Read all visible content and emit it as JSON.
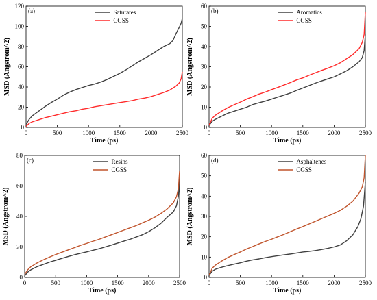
{
  "chart_data": [
    {
      "type": "line",
      "panel_label": "(a)",
      "xlabel": "Time (ps)",
      "ylabel": "MSD (Angstrom^2)",
      "xlim": [
        0,
        2500
      ],
      "ylim": [
        0,
        120
      ],
      "xticks": [
        0,
        500,
        1000,
        1500,
        2000,
        2500
      ],
      "yticks": [
        0,
        20,
        40,
        60,
        80,
        100,
        120
      ],
      "legend_position": "top-center",
      "grid": false,
      "series": [
        {
          "name": "Saturates",
          "color": "#404040",
          "points": [
            [
              0,
              3
            ],
            [
              50,
              8
            ],
            [
              100,
              11.5
            ],
            [
              200,
              16
            ],
            [
              300,
              20.5
            ],
            [
              400,
              24.5
            ],
            [
              500,
              28
            ],
            [
              600,
              32
            ],
            [
              700,
              35
            ],
            [
              800,
              37.5
            ],
            [
              900,
              39.5
            ],
            [
              1000,
              41.5
            ],
            [
              1100,
              43
            ],
            [
              1200,
              45
            ],
            [
              1300,
              47.5
            ],
            [
              1400,
              50.5
            ],
            [
              1500,
              53.5
            ],
            [
              1600,
              57
            ],
            [
              1700,
              61
            ],
            [
              1800,
              65
            ],
            [
              1900,
              68.5
            ],
            [
              2000,
              72
            ],
            [
              2100,
              76
            ],
            [
              2200,
              80
            ],
            [
              2300,
              83
            ],
            [
              2350,
              86
            ],
            [
              2400,
              93
            ],
            [
              2450,
              99
            ],
            [
              2480,
              103
            ],
            [
              2500,
              108
            ]
          ]
        },
        {
          "name": "CGSS",
          "color": "#ff2a2a",
          "points": [
            [
              0,
              1
            ],
            [
              50,
              4
            ],
            [
              100,
              5.5
            ],
            [
              200,
              7.5
            ],
            [
              300,
              9.5
            ],
            [
              400,
              11
            ],
            [
              500,
              12.5
            ],
            [
              600,
              14
            ],
            [
              700,
              15.5
            ],
            [
              800,
              16.5
            ],
            [
              900,
              18
            ],
            [
              1000,
              19
            ],
            [
              1100,
              20.5
            ],
            [
              1200,
              21.5
            ],
            [
              1300,
              22.5
            ],
            [
              1400,
              23.5
            ],
            [
              1500,
              24.5
            ],
            [
              1600,
              25.5
            ],
            [
              1700,
              26.5
            ],
            [
              1800,
              28
            ],
            [
              1900,
              29
            ],
            [
              2000,
              30.5
            ],
            [
              2100,
              32.5
            ],
            [
              2200,
              34.5
            ],
            [
              2300,
              37
            ],
            [
              2400,
              41
            ],
            [
              2450,
              44
            ],
            [
              2480,
              48
            ],
            [
              2500,
              55
            ]
          ]
        }
      ]
    },
    {
      "type": "line",
      "panel_label": "(b)",
      "xlabel": "Time (ps)",
      "ylabel": "MSD (Angstrom^2)",
      "xlim": [
        0,
        2500
      ],
      "ylim": [
        0,
        60
      ],
      "xticks": [
        0,
        500,
        1000,
        1500,
        2000,
        2500
      ],
      "yticks": [
        0,
        10,
        20,
        30,
        40,
        50,
        60
      ],
      "legend_position": "top-center",
      "grid": false,
      "series": [
        {
          "name": "Aromatics",
          "color": "#404040",
          "points": [
            [
              0,
              1
            ],
            [
              50,
              3
            ],
            [
              100,
              4
            ],
            [
              200,
              5.5
            ],
            [
              300,
              7
            ],
            [
              400,
              8
            ],
            [
              500,
              9
            ],
            [
              600,
              10
            ],
            [
              700,
              11.3
            ],
            [
              800,
              12.2
            ],
            [
              900,
              13
            ],
            [
              1000,
              14
            ],
            [
              1100,
              15
            ],
            [
              1200,
              16
            ],
            [
              1300,
              17
            ],
            [
              1400,
              18.3
            ],
            [
              1500,
              19.5
            ],
            [
              1600,
              20.7
            ],
            [
              1700,
              21.9
            ],
            [
              1800,
              23
            ],
            [
              1900,
              24
            ],
            [
              2000,
              25
            ],
            [
              2100,
              26.5
            ],
            [
              2200,
              28
            ],
            [
              2300,
              30
            ],
            [
              2400,
              32.5
            ],
            [
              2450,
              34.5
            ],
            [
              2480,
              38
            ],
            [
              2500,
              46
            ]
          ]
        },
        {
          "name": "CGSS",
          "color": "#ff2a2a",
          "points": [
            [
              0,
              1
            ],
            [
              50,
              4.5
            ],
            [
              100,
              6
            ],
            [
              200,
              8
            ],
            [
              300,
              9.8
            ],
            [
              400,
              11.2
            ],
            [
              500,
              12.5
            ],
            [
              600,
              14
            ],
            [
              700,
              15.2
            ],
            [
              800,
              16.5
            ],
            [
              900,
              17.5
            ],
            [
              1000,
              18.7
            ],
            [
              1100,
              19.8
            ],
            [
              1200,
              21
            ],
            [
              1300,
              22.2
            ],
            [
              1400,
              23.5
            ],
            [
              1500,
              24.5
            ],
            [
              1600,
              25.8
            ],
            [
              1700,
              27
            ],
            [
              1800,
              28.2
            ],
            [
              1900,
              29.3
            ],
            [
              2000,
              30.5
            ],
            [
              2100,
              32
            ],
            [
              2200,
              34
            ],
            [
              2300,
              36
            ],
            [
              2400,
              39
            ],
            [
              2450,
              42
            ],
            [
              2480,
              46
            ],
            [
              2500,
              57
            ]
          ]
        }
      ]
    },
    {
      "type": "line",
      "panel_label": "(c)",
      "xlabel": "Time (ps)",
      "ylabel": "MSD (Angstrom^2)",
      "xlim": [
        0,
        2500
      ],
      "ylim": [
        0,
        80
      ],
      "xticks": [
        0,
        500,
        1000,
        1500,
        2000,
        2500
      ],
      "yticks": [
        0,
        20,
        40,
        60,
        80
      ],
      "legend_position": "top-center",
      "grid": false,
      "series": [
        {
          "name": "Resins",
          "color": "#404040",
          "points": [
            [
              0,
              1
            ],
            [
              50,
              3.5
            ],
            [
              100,
              5
            ],
            [
              200,
              7
            ],
            [
              300,
              8.5
            ],
            [
              400,
              10
            ],
            [
              500,
              11.2
            ],
            [
              600,
              12.5
            ],
            [
              700,
              13.7
            ],
            [
              800,
              14.8
            ],
            [
              900,
              15.8
            ],
            [
              1000,
              16.7
            ],
            [
              1100,
              17.8
            ],
            [
              1200,
              18.8
            ],
            [
              1300,
              20
            ],
            [
              1400,
              21.2
            ],
            [
              1500,
              22.5
            ],
            [
              1600,
              23.8
            ],
            [
              1700,
              25
            ],
            [
              1800,
              26.5
            ],
            [
              1900,
              28
            ],
            [
              2000,
              30
            ],
            [
              2100,
              32.5
            ],
            [
              2200,
              35.5
            ],
            [
              2300,
              39.5
            ],
            [
              2400,
              43
            ],
            [
              2450,
              47
            ],
            [
              2480,
              53
            ],
            [
              2500,
              63
            ]
          ]
        },
        {
          "name": "CGSS",
          "color": "#c0542c",
          "points": [
            [
              0,
              2
            ],
            [
              50,
              5
            ],
            [
              100,
              7
            ],
            [
              200,
              9.5
            ],
            [
              300,
              11.5
            ],
            [
              400,
              13.3
            ],
            [
              500,
              15
            ],
            [
              600,
              16.5
            ],
            [
              700,
              18
            ],
            [
              800,
              19.5
            ],
            [
              900,
              21
            ],
            [
              1000,
              22.3
            ],
            [
              1100,
              23.7
            ],
            [
              1200,
              25
            ],
            [
              1300,
              26.5
            ],
            [
              1400,
              28
            ],
            [
              1500,
              29.5
            ],
            [
              1600,
              31
            ],
            [
              1700,
              32.5
            ],
            [
              1800,
              34
            ],
            [
              1900,
              35.8
            ],
            [
              2000,
              37.5
            ],
            [
              2100,
              39.5
            ],
            [
              2200,
              42
            ],
            [
              2300,
              45
            ],
            [
              2400,
              49
            ],
            [
              2450,
              53
            ],
            [
              2480,
              58
            ],
            [
              2500,
              70
            ]
          ]
        }
      ]
    },
    {
      "type": "line",
      "panel_label": "(d)",
      "xlabel": "Time (ps)",
      "ylabel": "MSD (Angstrom^2)",
      "xlim": [
        0,
        2500
      ],
      "ylim": [
        0,
        60
      ],
      "xticks": [
        0,
        500,
        1000,
        1500,
        2000,
        2500
      ],
      "yticks": [
        0,
        10,
        20,
        30,
        40,
        50,
        60
      ],
      "legend_position": "top-center",
      "grid": false,
      "series": [
        {
          "name": "Asphaltenes",
          "color": "#404040",
          "points": [
            [
              0,
              1
            ],
            [
              50,
              3
            ],
            [
              100,
              4
            ],
            [
              200,
              5
            ],
            [
              300,
              5.8
            ],
            [
              400,
              6.5
            ],
            [
              500,
              7.2
            ],
            [
              600,
              8
            ],
            [
              700,
              8.6
            ],
            [
              800,
              9.1
            ],
            [
              900,
              9.7
            ],
            [
              1000,
              10.2
            ],
            [
              1100,
              10.7
            ],
            [
              1200,
              11.1
            ],
            [
              1300,
              11.5
            ],
            [
              1400,
              12
            ],
            [
              1500,
              12.5
            ],
            [
              1600,
              12.8
            ],
            [
              1700,
              13.2
            ],
            [
              1800,
              13.7
            ],
            [
              1900,
              14.3
            ],
            [
              2000,
              15
            ],
            [
              2100,
              16
            ],
            [
              2200,
              18
            ],
            [
              2300,
              21
            ],
            [
              2380,
              25
            ],
            [
              2430,
              29
            ],
            [
              2470,
              35
            ],
            [
              2500,
              47
            ]
          ]
        },
        {
          "name": "CGSS",
          "color": "#c0542c",
          "points": [
            [
              0,
              1
            ],
            [
              50,
              4.5
            ],
            [
              100,
              6
            ],
            [
              200,
              8
            ],
            [
              300,
              9.8
            ],
            [
              400,
              11.2
            ],
            [
              500,
              12.5
            ],
            [
              600,
              14
            ],
            [
              700,
              15.2
            ],
            [
              800,
              16.5
            ],
            [
              900,
              17.7
            ],
            [
              1000,
              18.8
            ],
            [
              1100,
              20
            ],
            [
              1200,
              21.2
            ],
            [
              1300,
              22.5
            ],
            [
              1400,
              23.8
            ],
            [
              1500,
              25
            ],
            [
              1600,
              26.3
            ],
            [
              1700,
              27.6
            ],
            [
              1800,
              28.9
            ],
            [
              1900,
              30.2
            ],
            [
              2000,
              31.5
            ],
            [
              2100,
              33
            ],
            [
              2200,
              35
            ],
            [
              2300,
              37.5
            ],
            [
              2400,
              41.5
            ],
            [
              2450,
              44.5
            ],
            [
              2480,
              49
            ],
            [
              2500,
              60
            ]
          ]
        }
      ]
    }
  ]
}
